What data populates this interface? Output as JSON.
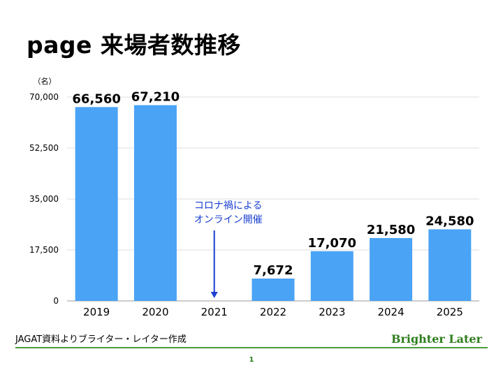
{
  "title": "page 来場者数推移",
  "source": "JAGAT資料よりブライター・レイター作成",
  "brand": "Brighter Later",
  "page_number": "1",
  "chart_data": {
    "type": "bar",
    "ylabel": "（名）",
    "categories": [
      "2019",
      "2020",
      "2021",
      "2022",
      "2023",
      "2024",
      "2025"
    ],
    "values": [
      66560,
      67210,
      null,
      7672,
      17070,
      21580,
      24580
    ],
    "value_labels": [
      "66,560",
      "67,210",
      "",
      "7,672",
      "17,070",
      "21,580",
      "24,580"
    ],
    "ylim": [
      0,
      70000
    ],
    "yticks": [
      0,
      17500,
      35000,
      52500,
      70000
    ],
    "ytick_labels": [
      "0",
      "17,500",
      "35,000",
      "52,500",
      "70,000"
    ],
    "grid": true,
    "bar_color": "#4aa3f4",
    "annotation": {
      "category": "2021",
      "lines": [
        "コロナ禍による",
        "オンライン開催"
      ],
      "color": "#1a3fd1"
    }
  }
}
